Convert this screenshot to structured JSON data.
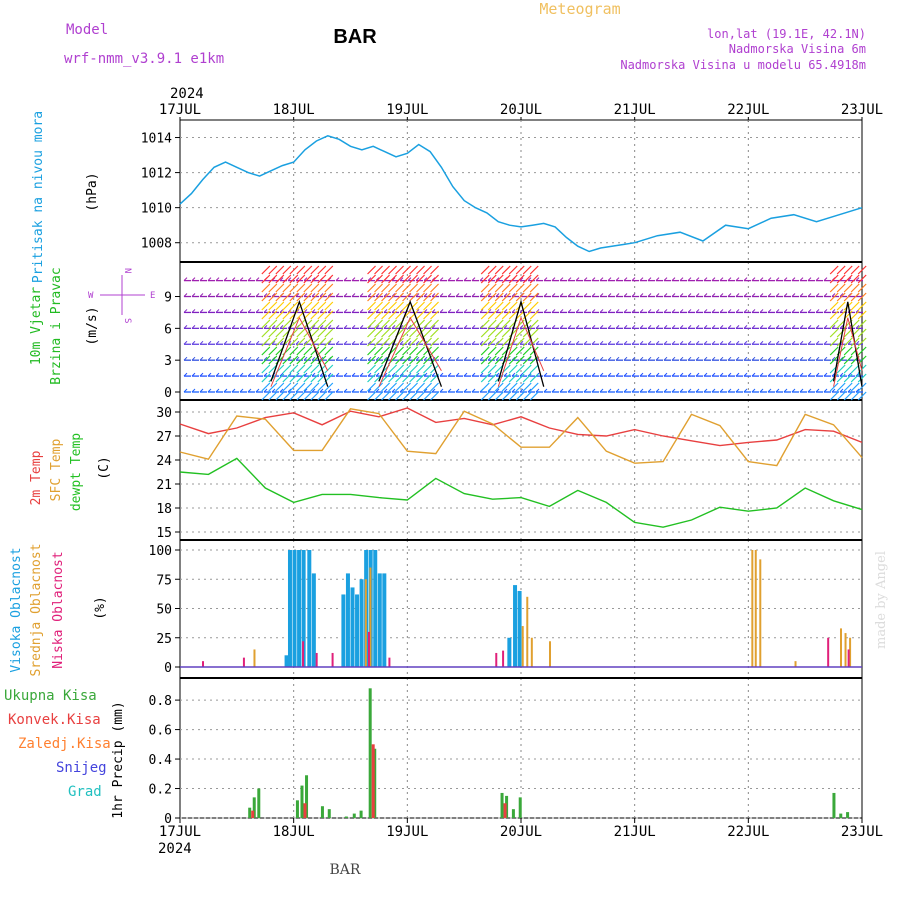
{
  "header": {
    "model_label": "Model",
    "model_name": "wrf-nmm_v3.9.1 e1km",
    "station": "BAR",
    "title": "Meteogram",
    "lonlat": "lon,lat (19.1E, 42.1N)",
    "elevation": "Nadmorska Visina 6m",
    "model_elevation": "Nadmorska Visina u modelu 65.4918m"
  },
  "footer": {
    "station": "BAR",
    "watermark": "made by Angel"
  },
  "colors": {
    "pressure": "#1aa0e0",
    "wind_title": "#22bb22",
    "units_purple": "#b040d0",
    "t2m": "#e84040",
    "sfc": "#e0a030",
    "dew": "#22c022",
    "cloud_high": "#1aa0e0",
    "cloud_mid": "#e0a030",
    "cloud_low": "#e0207a",
    "precip_total": "#3aa83a",
    "precip_conv": "#e84040",
    "precip_frz": "#ff8030",
    "snow": "#4444dd",
    "hail": "#22c0c0",
    "title_orange": "#f0c060"
  },
  "time_axis": {
    "year": "2024",
    "ticks": [
      "17JUL",
      "18JUL",
      "19JUL",
      "20JUL",
      "21JUL",
      "22JUL",
      "23JUL"
    ]
  },
  "panels": {
    "pressure": {
      "label": "Pritisak na nivou mora",
      "unit": "(hPa)"
    },
    "wind": {
      "label1": "10m Vjetar",
      "label2": "Brzina i Pravac",
      "unit": "(m/s)",
      "compass_w": "W",
      "compass_e": "E",
      "compass_n": "N",
      "compass_s": "S"
    },
    "temp": {
      "label1": "2m Temp",
      "label2": "SFC Temp",
      "label3": "dewpt Temp",
      "unit": "(C)"
    },
    "cloud": {
      "label1": "Visoka Oblacnost",
      "label2": "Srednja Oblacnost",
      "label3": "Niska Oblacnost",
      "unit": "(%)"
    },
    "precip": {
      "unit": "1hr Precip (mm)",
      "legend": [
        "Ukupna Kisa",
        "Konvek.Kisa",
        "Zaledj.Kisa",
        "Snijeg",
        "Grad"
      ]
    }
  },
  "chart_data": [
    {
      "type": "line",
      "title": "Pritisak na nivou mora",
      "ylabel": "(hPa)",
      "ylim": [
        1006.9,
        1015.0
      ],
      "yticks": [
        1008,
        1010,
        1012,
        1014
      ],
      "x_days": [
        0,
        0.1,
        0.2,
        0.3,
        0.4,
        0.5,
        0.6,
        0.7,
        0.8,
        0.9,
        1.0,
        1.1,
        1.2,
        1.3,
        1.4,
        1.5,
        1.6,
        1.7,
        1.8,
        1.9,
        2.0,
        2.1,
        2.2,
        2.3,
        2.4,
        2.5,
        2.6,
        2.7,
        2.8,
        2.9,
        3.0,
        3.1,
        3.2,
        3.3,
        3.4,
        3.5,
        3.6,
        3.7,
        3.8,
        3.9,
        4.0,
        4.2,
        4.4,
        4.6,
        4.8,
        5.0,
        5.2,
        5.4,
        5.6,
        5.8,
        6.0
      ],
      "values": [
        1010.2,
        1010.8,
        1011.6,
        1012.3,
        1012.6,
        1012.3,
        1012.0,
        1011.8,
        1012.1,
        1012.4,
        1012.6,
        1013.3,
        1013.8,
        1014.1,
        1013.9,
        1013.5,
        1013.3,
        1013.5,
        1013.2,
        1012.9,
        1013.1,
        1013.6,
        1013.2,
        1012.3,
        1011.2,
        1010.4,
        1010.0,
        1009.7,
        1009.2,
        1009.0,
        1008.9,
        1009.0,
        1009.1,
        1008.9,
        1008.3,
        1007.8,
        1007.5,
        1007.7,
        1007.8,
        1007.9,
        1008.0,
        1008.4,
        1008.6,
        1008.1,
        1009.0,
        1008.8,
        1009.4,
        1009.6,
        1009.2,
        1009.6,
        1010.0
      ]
    },
    {
      "type": "line",
      "title": "Temperatura",
      "ylabel": "(C)",
      "ylim": [
        14,
        31.5
      ],
      "yticks": [
        15,
        18,
        21,
        24,
        27,
        30
      ],
      "x_days": [
        0,
        0.25,
        0.5,
        0.75,
        1.0,
        1.25,
        1.5,
        1.75,
        2.0,
        2.25,
        2.5,
        2.75,
        3.0,
        3.25,
        3.5,
        3.75,
        4.0,
        4.25,
        4.5,
        4.75,
        5.0,
        5.25,
        5.5,
        5.75,
        6.0
      ],
      "series": [
        {
          "name": "2m Temp",
          "values": [
            28.5,
            27.3,
            28.0,
            29.3,
            29.9,
            28.4,
            30.1,
            29.4,
            30.5,
            28.7,
            29.2,
            28.4,
            29.4,
            28.0,
            27.2,
            27.0,
            27.8,
            27.0,
            26.4,
            25.8,
            26.2,
            26.5,
            27.8,
            27.6,
            26.2
          ]
        },
        {
          "name": "SFC Temp",
          "values": [
            25.0,
            24.1,
            29.5,
            29.1,
            25.2,
            25.2,
            30.4,
            29.8,
            25.1,
            24.8,
            30.1,
            28.5,
            25.6,
            25.6,
            29.3,
            25.1,
            23.6,
            23.8,
            29.7,
            28.3,
            23.8,
            23.3,
            29.7,
            28.4,
            24.3
          ]
        },
        {
          "name": "dewpt Temp",
          "values": [
            22.5,
            22.2,
            24.2,
            20.5,
            18.7,
            19.7,
            19.7,
            19.3,
            19.0,
            21.7,
            19.8,
            19.1,
            19.3,
            18.2,
            20.2,
            18.7,
            16.2,
            15.6,
            16.5,
            18.1,
            17.6,
            18.0,
            20.5,
            18.9,
            17.8
          ]
        }
      ]
    },
    {
      "type": "bar",
      "title": "Oblacnost",
      "ylabel": "(%)",
      "ylim": [
        0,
        100
      ],
      "yticks": [
        0,
        25,
        50,
        75,
        100
      ],
      "series": [
        {
          "name": "Visoka Oblacnost",
          "points": [
            [
              0.92,
              10
            ],
            [
              0.95,
              100
            ],
            [
              0.99,
              100
            ],
            [
              1.03,
              100
            ],
            [
              1.07,
              100
            ],
            [
              1.12,
              100
            ],
            [
              1.16,
              80
            ],
            [
              1.42,
              62
            ],
            [
              1.46,
              80
            ],
            [
              1.5,
              68
            ],
            [
              1.54,
              62
            ],
            [
              1.58,
              75
            ],
            [
              1.62,
              100
            ],
            [
              1.66,
              100
            ],
            [
              1.7,
              100
            ],
            [
              1.74,
              80
            ],
            [
              1.78,
              80
            ],
            [
              2.88,
              25
            ],
            [
              2.93,
              70
            ],
            [
              2.97,
              65
            ]
          ]
        },
        {
          "name": "Srednja Oblacnost",
          "points": [
            [
              0.62,
              15
            ],
            [
              1.6,
              75
            ],
            [
              1.64,
              85
            ],
            [
              2.98,
              35
            ],
            [
              3.02,
              60
            ],
            [
              3.06,
              25
            ],
            [
              3.22,
              22
            ],
            [
              5.0,
              100
            ],
            [
              5.03,
              100
            ],
            [
              5.07,
              92
            ],
            [
              5.38,
              5
            ],
            [
              5.78,
              33
            ],
            [
              5.82,
              29
            ],
            [
              5.86,
              25
            ]
          ]
        },
        {
          "name": "Niska Oblacnost",
          "points": [
            [
              0.22,
              5
            ],
            [
              0.58,
              8
            ],
            [
              1.1,
              22
            ],
            [
              1.22,
              12
            ],
            [
              1.36,
              12
            ],
            [
              1.68,
              30
            ],
            [
              1.86,
              8
            ],
            [
              2.8,
              12
            ],
            [
              2.86,
              14
            ],
            [
              5.72,
              25
            ],
            [
              5.9,
              15
            ]
          ]
        }
      ]
    },
    {
      "type": "bar",
      "title": "1hr Precip",
      "ylabel": "1hr Precip (mm)",
      "ylim": [
        0,
        0.95
      ],
      "yticks": [
        0,
        0.2,
        0.4,
        0.6,
        0.8
      ],
      "series": [
        {
          "name": "Ukupna Kisa",
          "points": [
            [
              0.6,
              0.07
            ],
            [
              0.64,
              0.14
            ],
            [
              0.68,
              0.2
            ],
            [
              1.02,
              0.12
            ],
            [
              1.06,
              0.22
            ],
            [
              1.1,
              0.29
            ],
            [
              1.24,
              0.08
            ],
            [
              1.3,
              0.06
            ],
            [
              1.45,
              0.01
            ],
            [
              1.52,
              0.03
            ],
            [
              1.58,
              0.05
            ],
            [
              1.66,
              0.88
            ],
            [
              1.7,
              0.47
            ],
            [
              2.82,
              0.17
            ],
            [
              2.86,
              0.15
            ],
            [
              2.92,
              0.06
            ],
            [
              2.98,
              0.14
            ],
            [
              5.74,
              0.17
            ],
            [
              5.8,
              0.03
            ],
            [
              5.86,
              0.04
            ]
          ]
        },
        {
          "name": "Konvek.Kisa",
          "points": [
            [
              0.6,
              0.05
            ],
            [
              1.06,
              0.1
            ],
            [
              1.66,
              0.5
            ],
            [
              2.82,
              0.1
            ]
          ]
        }
      ]
    }
  ]
}
